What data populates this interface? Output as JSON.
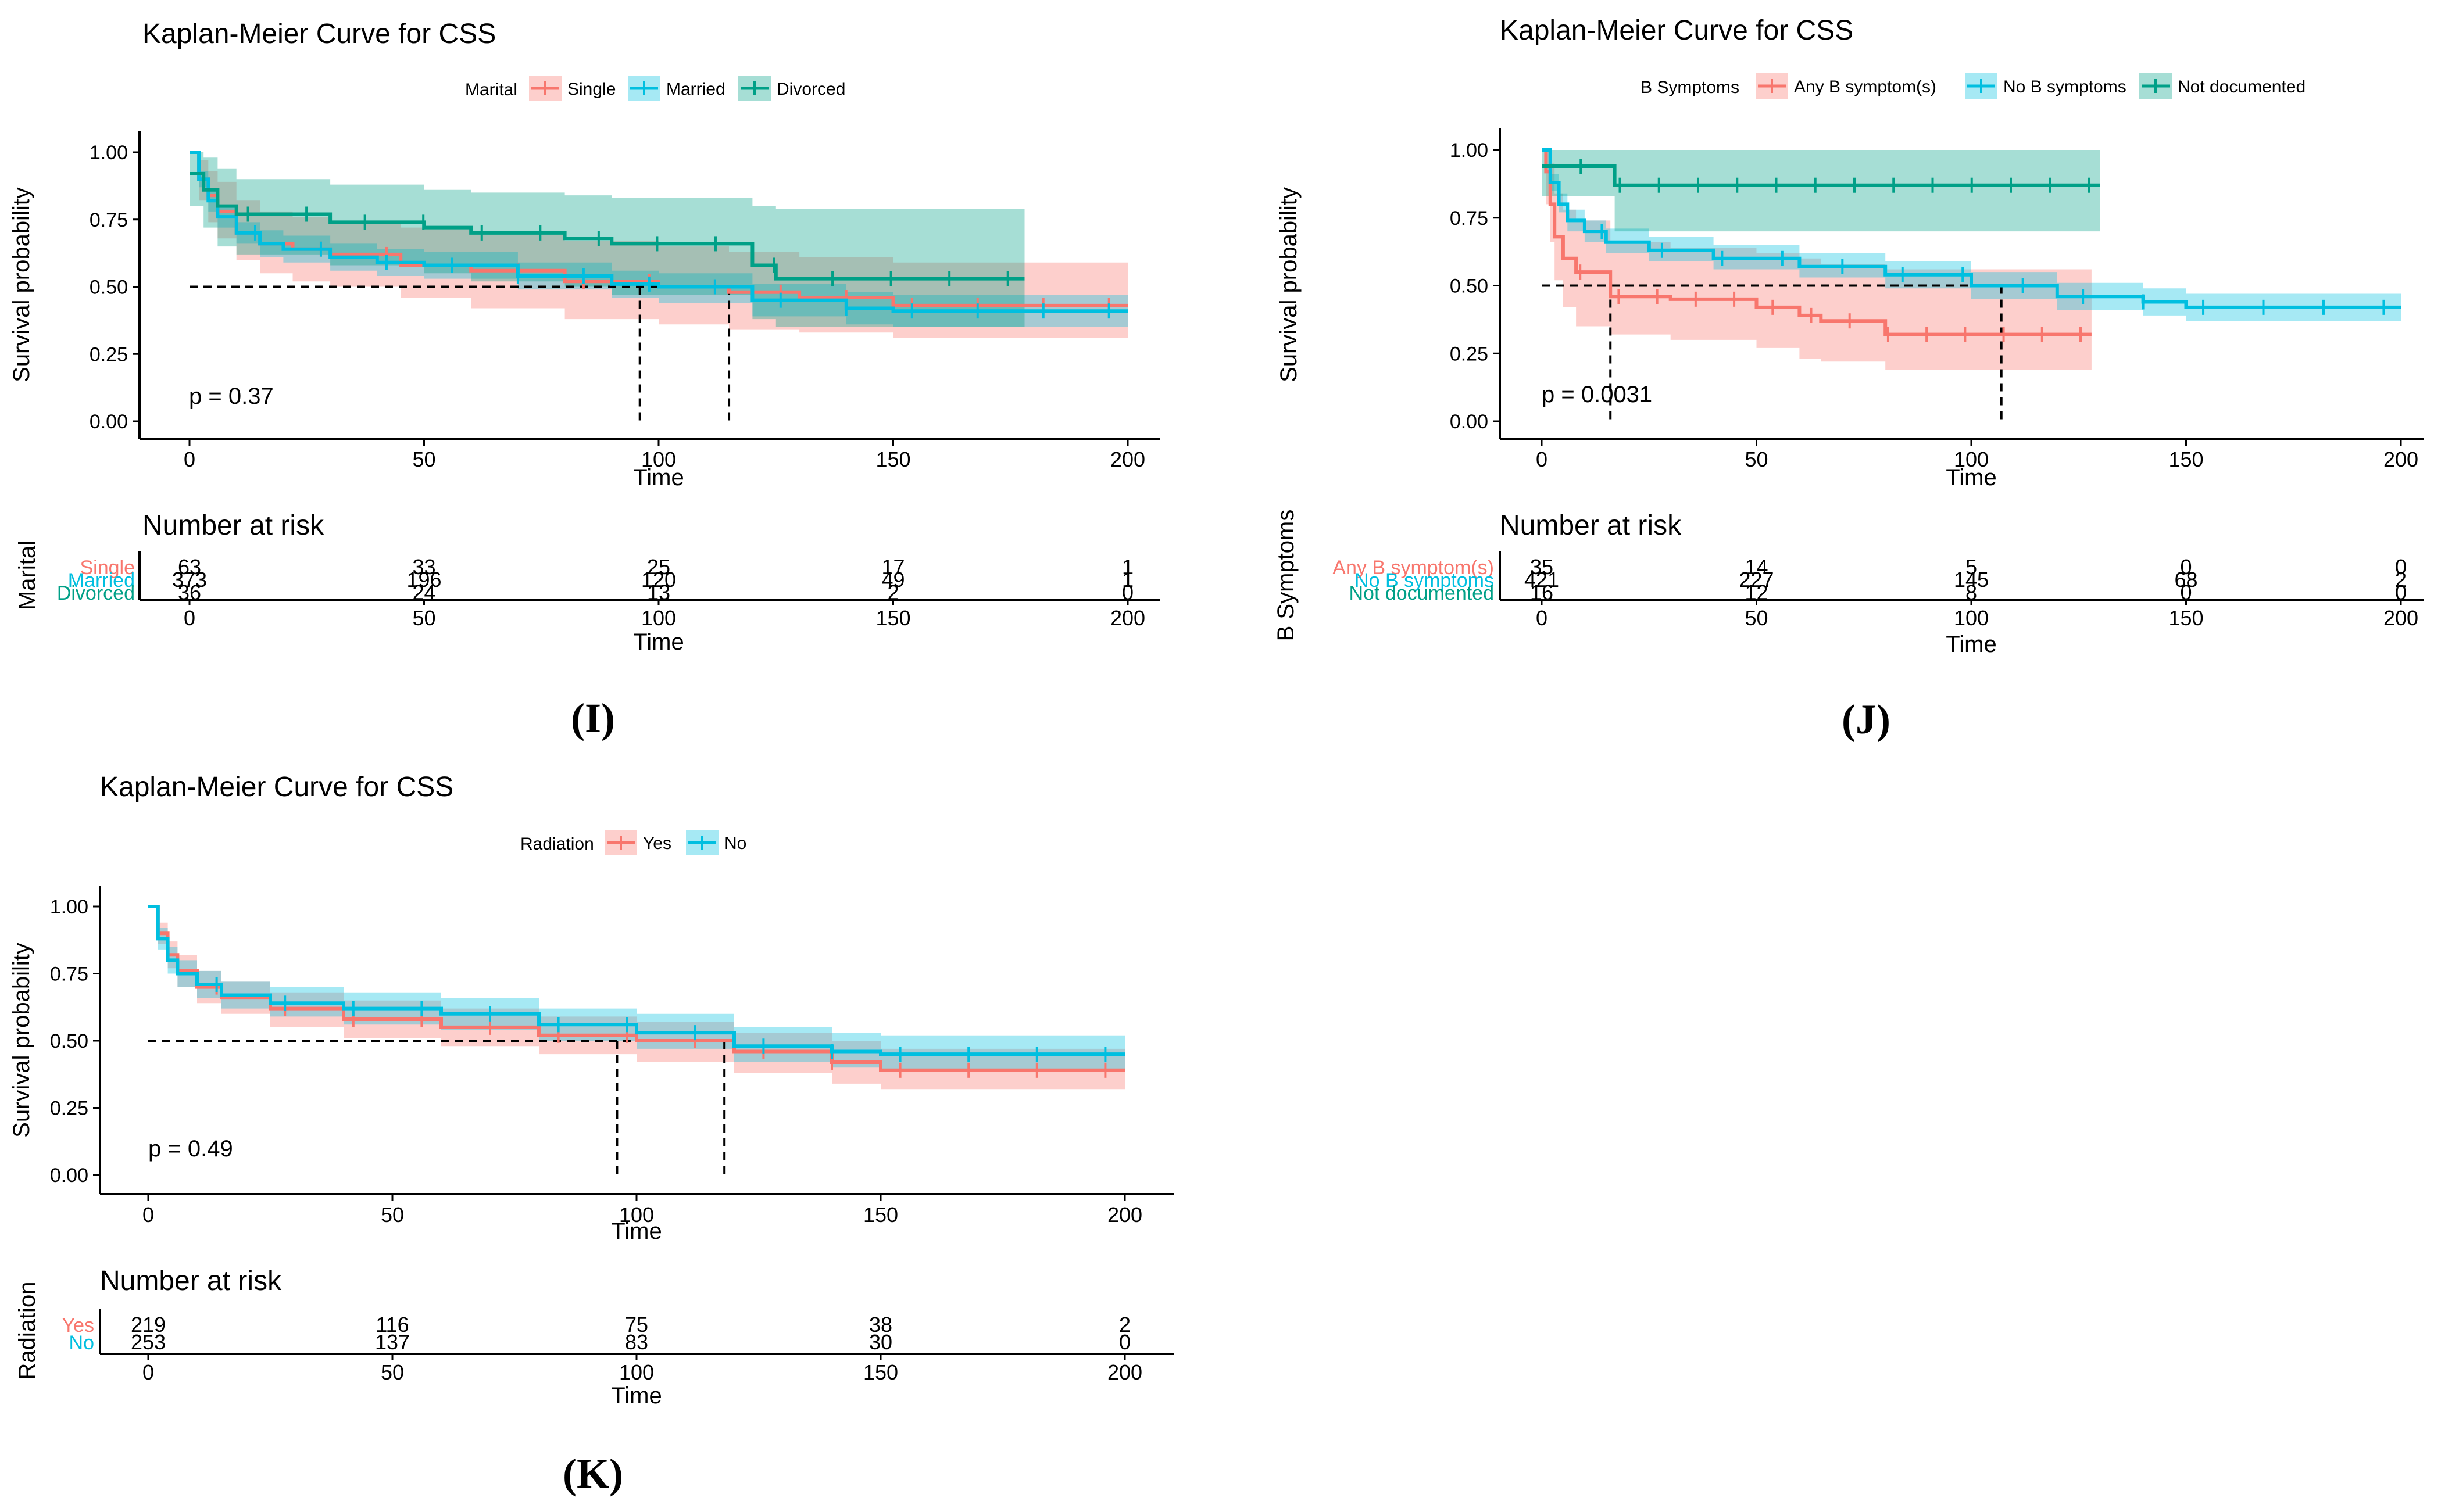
{
  "colors": {
    "red": "#F8766D",
    "cyan": "#00BFE0",
    "teal": "#00A087",
    "axis": "#000000"
  },
  "common": {
    "x_axis_label": "Time",
    "y_axis_label": "Survival probability",
    "risk_title": "Number at risk"
  },
  "chart_data": [
    {
      "type": "line",
      "panel": "(I)",
      "title": "Kaplan-Meier Curve for CSS",
      "legend_title": "Marital",
      "legend_position": "top",
      "xlabel": "Time",
      "ylabel": "Survival probability",
      "xlim": [
        0,
        200
      ],
      "ylim": [
        0,
        1
      ],
      "x_ticks": [
        0,
        50,
        100,
        150,
        200
      ],
      "y_ticks": [
        0.0,
        0.25,
        0.5,
        0.75,
        1.0
      ],
      "y_tick_labels": [
        "0.00",
        "0.25",
        "0.50",
        "0.75",
        "1.00"
      ],
      "p_value": "p = 0.37",
      "median_times": [
        96,
        115
      ],
      "series": [
        {
          "name": "Single",
          "color": "#F8766D",
          "x": [
            0,
            2,
            4,
            6,
            10,
            15,
            22,
            30,
            45,
            60,
            80,
            100,
            115,
            130,
            150,
            200
          ],
          "y": [
            1,
            0.9,
            0.84,
            0.78,
            0.7,
            0.66,
            0.64,
            0.62,
            0.58,
            0.56,
            0.52,
            0.5,
            0.48,
            0.46,
            0.43,
            0.43
          ],
          "lower": [
            1,
            0.82,
            0.74,
            0.68,
            0.6,
            0.55,
            0.52,
            0.5,
            0.46,
            0.42,
            0.38,
            0.36,
            0.34,
            0.33,
            0.31,
            0.31
          ],
          "upper": [
            1,
            0.97,
            0.93,
            0.89,
            0.82,
            0.78,
            0.76,
            0.74,
            0.72,
            0.7,
            0.67,
            0.65,
            0.63,
            0.61,
            0.59,
            0.59
          ]
        },
        {
          "name": "Married",
          "color": "#00BFE0",
          "x": [
            0,
            2,
            4,
            6,
            10,
            15,
            20,
            30,
            40,
            50,
            70,
            90,
            100,
            120,
            140,
            150,
            200
          ],
          "y": [
            1,
            0.9,
            0.82,
            0.76,
            0.7,
            0.66,
            0.64,
            0.61,
            0.59,
            0.58,
            0.54,
            0.51,
            0.5,
            0.45,
            0.42,
            0.41,
            0.41
          ],
          "lower": [
            1,
            0.87,
            0.78,
            0.72,
            0.66,
            0.61,
            0.59,
            0.56,
            0.54,
            0.53,
            0.49,
            0.46,
            0.44,
            0.39,
            0.36,
            0.35,
            0.35
          ],
          "upper": [
            1,
            0.93,
            0.86,
            0.8,
            0.74,
            0.71,
            0.69,
            0.66,
            0.64,
            0.63,
            0.59,
            0.56,
            0.55,
            0.51,
            0.48,
            0.47,
            0.47
          ]
        },
        {
          "name": "Divorced",
          "color": "#00A087",
          "x": [
            0,
            3,
            6,
            10,
            30,
            50,
            60,
            80,
            90,
            120,
            125,
            150,
            178
          ],
          "y": [
            0.92,
            0.86,
            0.8,
            0.77,
            0.74,
            0.72,
            0.7,
            0.68,
            0.66,
            0.58,
            0.53,
            0.53,
            0.53
          ],
          "lower": [
            0.8,
            0.72,
            0.65,
            0.62,
            0.58,
            0.55,
            0.52,
            0.5,
            0.47,
            0.38,
            0.35,
            0.35,
            0.35
          ],
          "upper": [
            1,
            0.98,
            0.94,
            0.9,
            0.88,
            0.86,
            0.85,
            0.84,
            0.83,
            0.8,
            0.79,
            0.79,
            0.79
          ]
        }
      ],
      "risk_table": {
        "ylabel": "Marital",
        "times": [
          0,
          50,
          100,
          150,
          200
        ],
        "rows": [
          {
            "name": "Single",
            "color": "#F8766D",
            "counts": [
              "63",
              "33",
              "25",
              "17",
              "1"
            ]
          },
          {
            "name": "Married",
            "color": "#00BFE0",
            "counts": [
              "373",
              "196",
              "120",
              "49",
              "1"
            ]
          },
          {
            "name": "Divorced",
            "color": "#00A087",
            "counts": [
              "36",
              "24",
              "13",
              "2",
              "0"
            ]
          }
        ]
      }
    },
    {
      "type": "line",
      "panel": "(J)",
      "title": "Kaplan-Meier Curve for CSS",
      "legend_title": "B Symptoms",
      "legend_position": "top",
      "xlabel": "Time",
      "ylabel": "Survival probability",
      "xlim": [
        0,
        200
      ],
      "ylim": [
        0,
        1
      ],
      "x_ticks": [
        0,
        50,
        100,
        150,
        200
      ],
      "y_ticks": [
        0.0,
        0.25,
        0.5,
        0.75,
        1.0
      ],
      "y_tick_labels": [
        "0.00",
        "0.25",
        "0.50",
        "0.75",
        "1.00"
      ],
      "p_value": "p = 0.0031",
      "median_times": [
        16,
        107
      ],
      "series": [
        {
          "name": "Any B symptom(s)",
          "color": "#F8766D",
          "x": [
            0,
            1,
            2,
            3,
            5,
            8,
            16,
            30,
            50,
            60,
            65,
            80,
            128
          ],
          "y": [
            1,
            0.92,
            0.8,
            0.68,
            0.6,
            0.55,
            0.46,
            0.45,
            0.42,
            0.39,
            0.37,
            0.32,
            0.32
          ],
          "lower": [
            1,
            0.8,
            0.66,
            0.52,
            0.42,
            0.35,
            0.32,
            0.3,
            0.27,
            0.23,
            0.22,
            0.19,
            0.19
          ],
          "upper": [
            1,
            1,
            0.95,
            0.84,
            0.78,
            0.74,
            0.66,
            0.64,
            0.62,
            0.6,
            0.58,
            0.56,
            0.56
          ]
        },
        {
          "name": "No B symptoms",
          "color": "#00BFE0",
          "x": [
            0,
            2,
            4,
            6,
            10,
            15,
            25,
            40,
            60,
            80,
            100,
            120,
            140,
            150,
            200
          ],
          "y": [
            1,
            0.88,
            0.8,
            0.74,
            0.7,
            0.66,
            0.63,
            0.6,
            0.57,
            0.54,
            0.5,
            0.46,
            0.44,
            0.42,
            0.42
          ],
          "lower": [
            1,
            0.85,
            0.77,
            0.7,
            0.66,
            0.62,
            0.59,
            0.56,
            0.53,
            0.49,
            0.45,
            0.41,
            0.39,
            0.37,
            0.37
          ],
          "upper": [
            1,
            0.91,
            0.84,
            0.78,
            0.74,
            0.71,
            0.68,
            0.65,
            0.62,
            0.59,
            0.55,
            0.51,
            0.49,
            0.47,
            0.47
          ]
        },
        {
          "name": "Not documented",
          "color": "#00A087",
          "x": [
            0,
            17,
            130
          ],
          "y": [
            0.94,
            0.87,
            0.87
          ],
          "lower": [
            0.83,
            0.7,
            0.7
          ],
          "upper": [
            1,
            1,
            1
          ]
        }
      ],
      "risk_table": {
        "ylabel": "B Symptoms",
        "times": [
          0,
          50,
          100,
          150,
          200
        ],
        "rows": [
          {
            "name": "Any B symptom(s)",
            "color": "#F8766D",
            "counts": [
              "35",
              "14",
              "5",
              "0",
              "0"
            ]
          },
          {
            "name": "No B symptoms",
            "color": "#00BFE0",
            "counts": [
              "421",
              "227",
              "145",
              "68",
              "2"
            ]
          },
          {
            "name": "Not documented",
            "color": "#00A087",
            "counts": [
              "16",
              "12",
              "8",
              "0",
              "0"
            ]
          }
        ]
      }
    },
    {
      "type": "line",
      "panel": "(K)",
      "title": "Kaplan-Meier Curve for CSS",
      "legend_title": "Radiation",
      "legend_position": "top",
      "xlabel": "Time",
      "ylabel": "Survival probability",
      "xlim": [
        0,
        200
      ],
      "ylim": [
        0,
        1
      ],
      "x_ticks": [
        0,
        50,
        100,
        150,
        200
      ],
      "y_ticks": [
        0.0,
        0.25,
        0.5,
        0.75,
        1.0
      ],
      "y_tick_labels": [
        "0.00",
        "0.25",
        "0.50",
        "0.75",
        "1.00"
      ],
      "p_value": "p = 0.49",
      "median_times": [
        96,
        118
      ],
      "series": [
        {
          "name": "Yes",
          "color": "#F8766D",
          "x": [
            0,
            2,
            4,
            6,
            10,
            15,
            25,
            40,
            60,
            80,
            100,
            120,
            140,
            150,
            200
          ],
          "y": [
            1,
            0.9,
            0.82,
            0.76,
            0.7,
            0.66,
            0.62,
            0.58,
            0.55,
            0.52,
            0.5,
            0.46,
            0.42,
            0.39,
            0.39
          ],
          "lower": [
            1,
            0.86,
            0.77,
            0.7,
            0.64,
            0.6,
            0.55,
            0.51,
            0.48,
            0.45,
            0.42,
            0.38,
            0.34,
            0.32,
            0.32
          ],
          "upper": [
            1,
            0.94,
            0.87,
            0.82,
            0.76,
            0.72,
            0.68,
            0.65,
            0.62,
            0.59,
            0.57,
            0.53,
            0.5,
            0.47,
            0.47
          ]
        },
        {
          "name": "No",
          "color": "#00BFE0",
          "x": [
            0,
            2,
            4,
            6,
            10,
            15,
            25,
            40,
            60,
            80,
            100,
            120,
            140,
            150,
            200
          ],
          "y": [
            1,
            0.88,
            0.8,
            0.75,
            0.71,
            0.67,
            0.64,
            0.62,
            0.6,
            0.56,
            0.53,
            0.48,
            0.46,
            0.45,
            0.45
          ],
          "lower": [
            1,
            0.84,
            0.75,
            0.7,
            0.66,
            0.62,
            0.59,
            0.56,
            0.54,
            0.5,
            0.47,
            0.42,
            0.4,
            0.39,
            0.39
          ],
          "upper": [
            1,
            0.92,
            0.85,
            0.8,
            0.76,
            0.72,
            0.7,
            0.68,
            0.66,
            0.62,
            0.6,
            0.55,
            0.53,
            0.52,
            0.52
          ]
        }
      ],
      "risk_table": {
        "ylabel": "Radiation",
        "times": [
          0,
          50,
          100,
          150,
          200
        ],
        "rows": [
          {
            "name": "Yes",
            "color": "#F8766D",
            "counts": [
              "219",
              "116",
              "75",
              "38",
              "2"
            ]
          },
          {
            "name": "No",
            "color": "#00BFE0",
            "counts": [
              "253",
              "137",
              "83",
              "30",
              "0"
            ]
          }
        ]
      }
    }
  ]
}
